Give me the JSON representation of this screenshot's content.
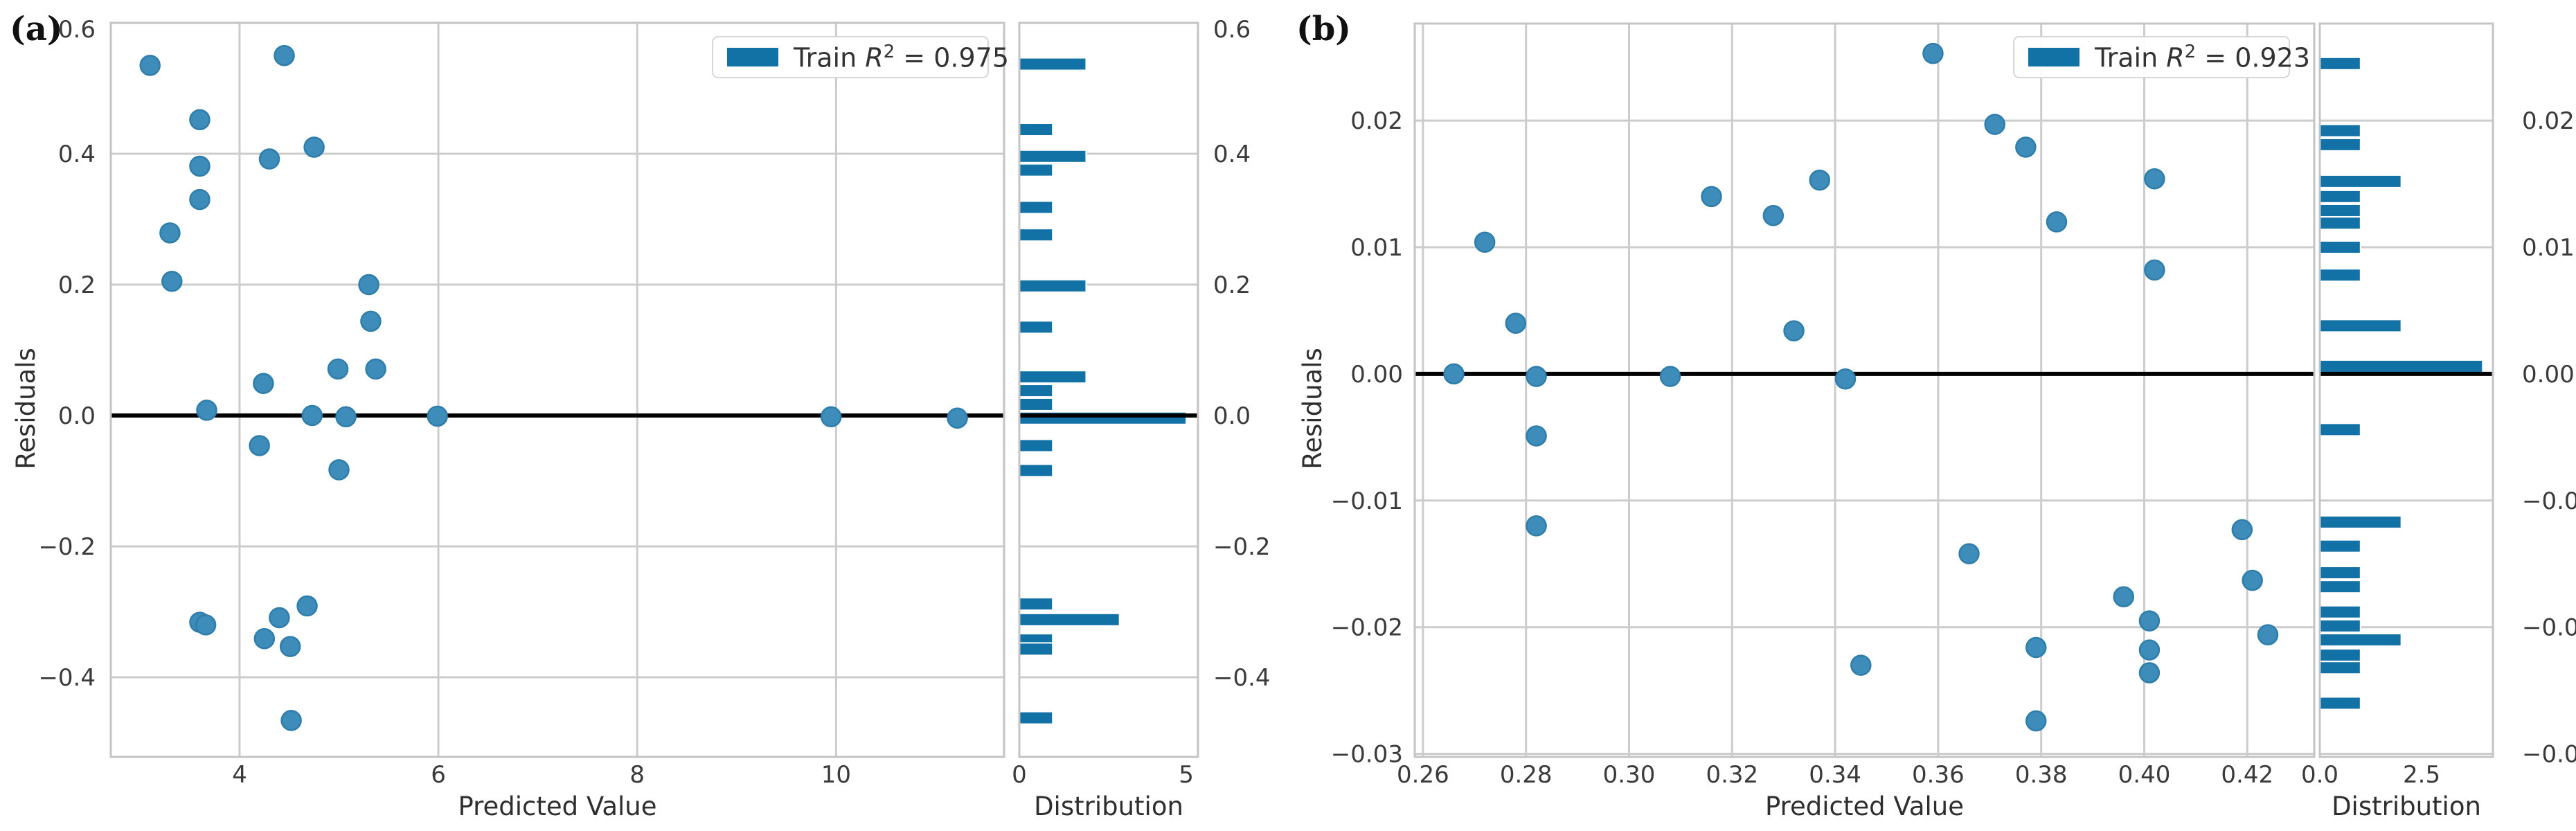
{
  "style": {
    "background": "#ffffff",
    "point_fill": "#3d8cba",
    "point_edge": "#2e7dab",
    "bar_fill": "#1272a6",
    "bar_edge": "#ffffff",
    "grid_color": "#cccccc",
    "spine_color": "#c4c4c4",
    "zero_line_color": "#000000",
    "tick_text_color": "#3a3a3a",
    "label_text_color": "#2e2e2e"
  },
  "chart_data": [
    {
      "panel_label": "(a)",
      "type": "scatter",
      "marginal": "histogram",
      "xlabel": "Predicted Value",
      "ylabel": "Residuals",
      "hist_xlabel": "Distribution",
      "legend": {
        "prefix": "Train ",
        "variable": "R",
        "exponent": "2",
        "suffix": " = 0.975"
      },
      "xlim": [
        2.705,
        11.69
      ],
      "ylim": [
        -0.5217,
        0.6
      ],
      "grid": true,
      "zero_line": 0.0,
      "x_ticks": {
        "values": [
          4,
          6,
          8,
          10
        ],
        "labels": [
          "4",
          "6",
          "8",
          "10"
        ]
      },
      "y_ticks": {
        "values": [
          0.6,
          0.4,
          0.2,
          0.0,
          -0.2,
          -0.4
        ],
        "labels": [
          "0.6",
          "0.4",
          "0.2",
          "0.0",
          "−0.2",
          "−0.4"
        ]
      },
      "hist_xlim": [
        0,
        5.35
      ],
      "hist_ticks": {
        "values": [
          0,
          5
        ],
        "labels": [
          "0",
          "5"
        ]
      },
      "points": [
        [
          3.1,
          0.535
        ],
        [
          4.45,
          0.55
        ],
        [
          3.6,
          0.452
        ],
        [
          4.75,
          0.41
        ],
        [
          4.3,
          0.392
        ],
        [
          3.6,
          0.381
        ],
        [
          3.6,
          0.33
        ],
        [
          3.3,
          0.279
        ],
        [
          3.32,
          0.205
        ],
        [
          5.3,
          0.2
        ],
        [
          5.32,
          0.144
        ],
        [
          4.99,
          0.071
        ],
        [
          5.37,
          0.071
        ],
        [
          4.24,
          0.049
        ],
        [
          3.67,
          0.008
        ],
        [
          4.73,
          0.0
        ],
        [
          5.07,
          -0.002
        ],
        [
          5.99,
          -0.001
        ],
        [
          9.95,
          -0.002
        ],
        [
          11.22,
          -0.004
        ],
        [
          4.2,
          -0.046
        ],
        [
          5.0,
          -0.083
        ],
        [
          4.68,
          -0.291
        ],
        [
          4.4,
          -0.309
        ],
        [
          3.6,
          -0.316
        ],
        [
          3.66,
          -0.32
        ],
        [
          4.25,
          -0.341
        ],
        [
          4.51,
          -0.353
        ],
        [
          4.52,
          -0.466
        ]
      ],
      "hist_bars": [
        {
          "y": 0.537,
          "count": 2
        },
        {
          "y": 0.437,
          "count": 1
        },
        {
          "y": 0.396,
          "count": 2
        },
        {
          "y": 0.375,
          "count": 1
        },
        {
          "y": 0.318,
          "count": 1
        },
        {
          "y": 0.276,
          "count": 1
        },
        {
          "y": 0.198,
          "count": 2
        },
        {
          "y": 0.135,
          "count": 1
        },
        {
          "y": 0.059,
          "count": 2
        },
        {
          "y": 0.038,
          "count": 1
        },
        {
          "y": 0.017,
          "count": 1
        },
        {
          "y": -0.004,
          "count": 5
        },
        {
          "y": -0.046,
          "count": 1
        },
        {
          "y": -0.084,
          "count": 1
        },
        {
          "y": -0.288,
          "count": 1
        },
        {
          "y": -0.312,
          "count": 3
        },
        {
          "y": -0.343,
          "count": 1
        },
        {
          "y": -0.357,
          "count": 1
        },
        {
          "y": -0.462,
          "count": 1
        }
      ]
    },
    {
      "panel_label": "(b)",
      "type": "scatter",
      "marginal": "histogram",
      "xlabel": "Predicted Value",
      "ylabel": "Residuals",
      "hist_xlabel": "Distribution",
      "legend": {
        "prefix": "Train ",
        "variable": "R",
        "exponent": "2",
        "suffix": " = 0.923"
      },
      "xlim": [
        0.2584,
        0.433
      ],
      "ylim": [
        -0.03024,
        0.02766
      ],
      "grid": true,
      "zero_line": 0.0,
      "x_ticks": {
        "values": [
          0.26,
          0.28,
          0.3,
          0.32,
          0.34,
          0.36,
          0.38,
          0.4,
          0.42
        ],
        "labels": [
          "0.26",
          "0.28",
          "0.30",
          "0.32",
          "0.34",
          "0.36",
          "0.38",
          "0.40",
          "0.42"
        ]
      },
      "y_ticks": {
        "values": [
          0.02,
          0.01,
          0.0,
          -0.01,
          -0.02,
          -0.03
        ],
        "labels": [
          "0.02",
          "0.01",
          "0.00",
          "−0.01",
          "−0.02",
          "−0.03"
        ]
      },
      "hist_xlim": [
        0,
        4.25
      ],
      "hist_ticks": {
        "values": [
          0,
          2.5
        ],
        "labels": [
          "0.0",
          "2.5"
        ]
      },
      "points": [
        [
          0.359,
          0.0253
        ],
        [
          0.371,
          0.0197
        ],
        [
          0.377,
          0.0179
        ],
        [
          0.337,
          0.0153
        ],
        [
          0.402,
          0.0154
        ],
        [
          0.316,
          0.014
        ],
        [
          0.328,
          0.0125
        ],
        [
          0.383,
          0.012
        ],
        [
          0.272,
          0.0104
        ],
        [
          0.402,
          0.0082
        ],
        [
          0.278,
          0.004
        ],
        [
          0.332,
          0.0034
        ],
        [
          0.266,
          0.0
        ],
        [
          0.282,
          -0.0002
        ],
        [
          0.308,
          -0.0002
        ],
        [
          0.342,
          -0.0004
        ],
        [
          0.282,
          -0.0049
        ],
        [
          0.282,
          -0.012
        ],
        [
          0.419,
          -0.0123
        ],
        [
          0.366,
          -0.0142
        ],
        [
          0.421,
          -0.0163
        ],
        [
          0.396,
          -0.0176
        ],
        [
          0.401,
          -0.0195
        ],
        [
          0.424,
          -0.0206
        ],
        [
          0.379,
          -0.0216
        ],
        [
          0.401,
          -0.0218
        ],
        [
          0.345,
          -0.023
        ],
        [
          0.401,
          -0.0236
        ],
        [
          0.379,
          -0.0274
        ]
      ],
      "hist_bars": [
        {
          "y": 0.0245,
          "count": 1
        },
        {
          "y": 0.0192,
          "count": 1
        },
        {
          "y": 0.0181,
          "count": 1
        },
        {
          "y": 0.0152,
          "count": 2
        },
        {
          "y": 0.014,
          "count": 1
        },
        {
          "y": 0.0129,
          "count": 1
        },
        {
          "y": 0.0119,
          "count": 1
        },
        {
          "y": 0.01,
          "count": 1
        },
        {
          "y": 0.0078,
          "count": 1
        },
        {
          "y": 0.0038,
          "count": 2
        },
        {
          "y": 0.0006,
          "count": 4
        },
        {
          "y": -0.0044,
          "count": 1
        },
        {
          "y": -0.0117,
          "count": 2
        },
        {
          "y": -0.0136,
          "count": 1
        },
        {
          "y": -0.0157,
          "count": 1
        },
        {
          "y": -0.0168,
          "count": 1
        },
        {
          "y": -0.0188,
          "count": 1
        },
        {
          "y": -0.0199,
          "count": 1
        },
        {
          "y": -0.021,
          "count": 2
        },
        {
          "y": -0.0222,
          "count": 1
        },
        {
          "y": -0.0232,
          "count": 1
        },
        {
          "y": -0.026,
          "count": 1
        }
      ]
    }
  ]
}
